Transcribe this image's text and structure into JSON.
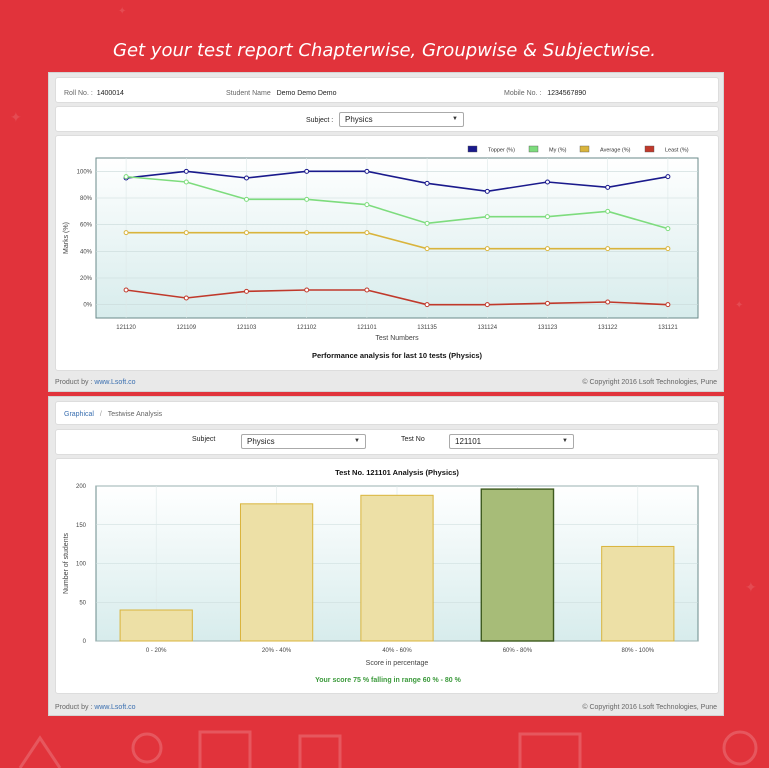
{
  "headline": "Get your test report Chapterwise, Groupwise & Subjectwise.",
  "student_info": {
    "roll_label": "Roll No. :",
    "roll_value": "1400014",
    "name_label": "Student Name",
    "name_value": "Demo Demo Demo",
    "mobile_label": "Mobile No. :",
    "mobile_value": "1234567890"
  },
  "subject_filter": {
    "label": "Subject :",
    "value": "Physics"
  },
  "footer": {
    "product_label": "Product by :",
    "product_link": "www.Lsoft.co",
    "copyright": "© Copyright 2016 Lsoft Technologies, Pune"
  },
  "breadcrumb": {
    "root": "Graphical",
    "sep": "/",
    "current": "Testwise Analysis"
  },
  "test_filter": {
    "subject_label": "Subject",
    "subject_value": "Physics",
    "test_label": "Test No",
    "test_value": "121101"
  },
  "score_message": "Your score 75 % falling in range 60 % - 80 %",
  "colors": {
    "background": "#e1333b",
    "highlight_bar": "#a7bc78",
    "bar": "#ede0a6"
  },
  "chart_data": [
    {
      "type": "line",
      "title": "Performance analysis for last 10 tests (Physics)",
      "xlabel": "Test Numbers",
      "ylabel": "Marks (%)",
      "ylim": [
        -10,
        110
      ],
      "yticks": [
        "0%",
        "20%",
        "40%",
        "60%",
        "80%",
        "100%"
      ],
      "categories": [
        "121120",
        "121109",
        "121103",
        "121102",
        "121101",
        "131135",
        "131124",
        "131123",
        "131122",
        "131121"
      ],
      "legend_position": "top-right",
      "series": [
        {
          "name": "Topper (%)",
          "color": "#1a1a8c",
          "values": [
            95,
            100,
            95,
            100,
            100,
            91,
            85,
            92,
            88,
            96
          ]
        },
        {
          "name": "My (%)",
          "color": "#7ddc7d",
          "values": [
            96,
            92,
            79,
            79,
            75,
            61,
            66,
            66,
            70,
            57
          ]
        },
        {
          "name": "Average (%)",
          "color": "#d9b43c",
          "values": [
            54,
            54,
            54,
            54,
            54,
            42,
            42,
            42,
            42,
            42
          ]
        },
        {
          "name": "Least (%)",
          "color": "#c0392b",
          "values": [
            11,
            5,
            10,
            11,
            11,
            0,
            0,
            1,
            2,
            0
          ]
        }
      ]
    },
    {
      "type": "bar",
      "title": "Test No. 121101 Analysis (Physics)",
      "xlabel": "Score in percentage",
      "ylabel": "Number of students",
      "ylim": [
        0,
        200
      ],
      "yticks": [
        "0",
        "50",
        "100",
        "150",
        "200"
      ],
      "categories": [
        "0 - 20%",
        "20% - 40%",
        "40% - 60%",
        "60% - 80%",
        "80% - 100%"
      ],
      "values": [
        40,
        177,
        188,
        196,
        122
      ],
      "highlight_index": 3
    }
  ]
}
